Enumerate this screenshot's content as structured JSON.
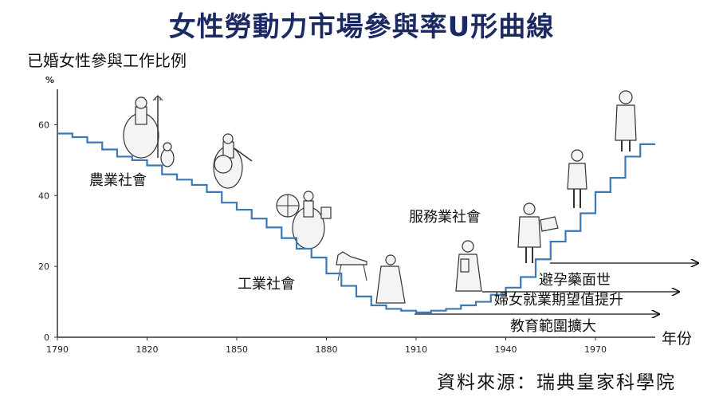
{
  "chart_data": {
    "type": "line",
    "title": "女性勞動力市場參與率U形曲線",
    "ylabel": "已婚女性參與工作比例",
    "yunit": "%",
    "xlabel": "年份",
    "xlim": [
      1790,
      1990
    ],
    "ylim": [
      0,
      70
    ],
    "xticks": [
      "1790",
      "1820",
      "1850",
      "1880",
      "1910",
      "1940",
      "1970"
    ],
    "yticks": [
      "0",
      "20",
      "40",
      "60"
    ],
    "series": [
      {
        "x": [
          1790,
          1795,
          1800,
          1805,
          1810,
          1815,
          1820,
          1825,
          1830,
          1835,
          1840,
          1845,
          1850,
          1855,
          1860,
          1865,
          1870,
          1875,
          1880,
          1885,
          1890,
          1895,
          1900,
          1905,
          1910,
          1915,
          1920,
          1925,
          1930,
          1935,
          1940,
          1945,
          1950,
          1955,
          1960,
          1965,
          1970,
          1975,
          1980,
          1985
        ],
        "y": [
          57.5,
          56.5,
          55,
          53,
          51,
          50,
          48.5,
          46,
          44.5,
          43,
          41,
          38,
          36,
          33.5,
          31,
          28,
          25,
          22.5,
          18,
          14.5,
          11.5,
          9,
          8,
          7.5,
          7,
          7.5,
          8,
          9,
          10,
          12,
          14,
          17,
          22,
          27,
          30,
          35,
          41,
          45,
          51,
          54.5
        ]
      }
    ],
    "annotations": {
      "agricultural": "農業社會",
      "industrial": "工業社會",
      "service": "服務業社會"
    },
    "factors": [
      "避孕藥面世",
      "婦女就業期望值提升",
      "教育範圍擴大"
    ]
  },
  "source": "資料來源：瑞典皇家科學院",
  "colors": {
    "step_line": "#3b78b4",
    "title": "#1b2a63",
    "axis": "#333333"
  }
}
